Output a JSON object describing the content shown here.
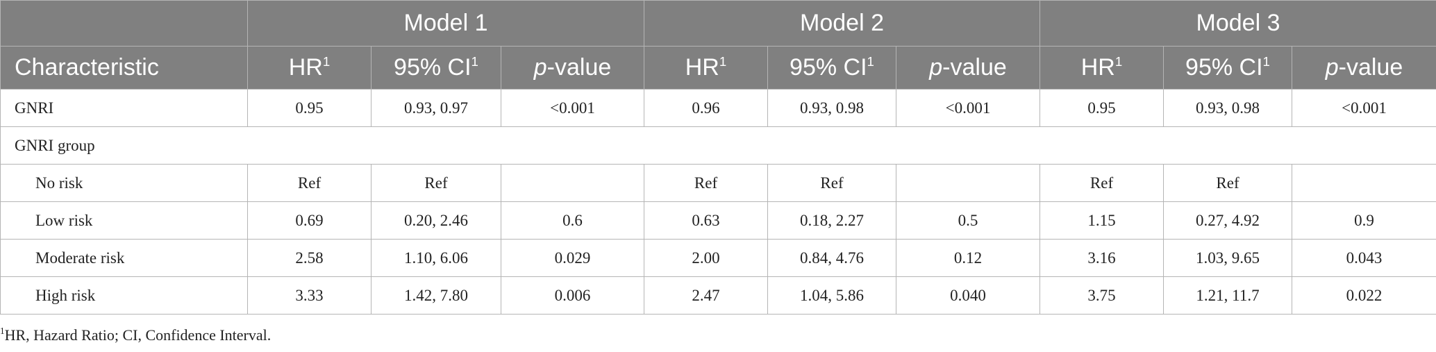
{
  "table": {
    "groups": [
      "Model 1",
      "Model 2",
      "Model 3"
    ],
    "columns": [
      {
        "text": "Characteristic"
      },
      {
        "text": "HR",
        "sup": "1"
      },
      {
        "text": "95% CI",
        "sup": "1"
      },
      {
        "italic": "p",
        "text": "-value"
      },
      {
        "text": "HR",
        "sup": "1"
      },
      {
        "text": "95% CI",
        "sup": "1"
      },
      {
        "italic": "p",
        "text": "-value"
      },
      {
        "text": "HR",
        "sup": "1"
      },
      {
        "text": "95% CI",
        "sup": "1"
      },
      {
        "italic": "p",
        "text": "-value"
      }
    ],
    "rows": [
      {
        "label": "GNRI",
        "cells": [
          "0.95",
          "0.93, 0.97",
          "<0.001",
          "0.96",
          "0.93, 0.98",
          "<0.001",
          "0.95",
          "0.93, 0.98",
          "<0.001"
        ]
      },
      {
        "label": "GNRI group",
        "subrows": [
          {
            "label": "No risk",
            "cells": [
              "Ref",
              "Ref",
              null,
              "Ref",
              "Ref",
              null,
              "Ref",
              "Ref",
              null
            ]
          },
          {
            "label": "Low risk",
            "cells": [
              "0.69",
              "0.20, 2.46",
              "0.6",
              "0.63",
              "0.18, 2.27",
              "0.5",
              "1.15",
              "0.27, 4.92",
              "0.9"
            ]
          },
          {
            "label": "Moderate risk",
            "cells": [
              "2.58",
              "1.10, 6.06",
              "0.029",
              "2.00",
              "0.84, 4.76",
              "0.12",
              "3.16",
              "1.03, 9.65",
              "0.043"
            ]
          },
          {
            "label": "High risk",
            "cells": [
              "3.33",
              "1.42, 7.80",
              "0.006",
              "2.47",
              "1.04, 5.86",
              "0.040",
              "3.75",
              "1.21, 11.7",
              "0.022"
            ]
          }
        ]
      }
    ]
  },
  "footnote": {
    "sup": "1",
    "text": "HR, Hazard Ratio; CI, Confidence Interval."
  }
}
